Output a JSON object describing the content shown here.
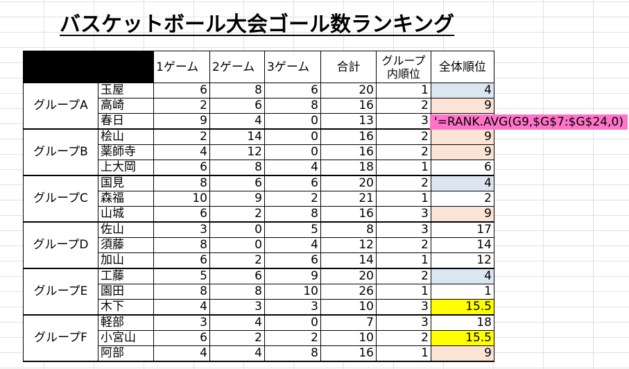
{
  "title": "バスケットボール大会ゴール数ランキング",
  "headers": {
    "game1": "1ゲーム",
    "game2": "2ゲーム",
    "game3": "3ゲーム",
    "total": "合計",
    "group_rank_line1": "グループ",
    "group_rank_line2": "内順位",
    "overall_rank": "全体順位"
  },
  "groups": [
    {
      "label": "グループA",
      "players": [
        {
          "name": "玉屋",
          "g1": "6",
          "g2": "8",
          "g3": "6",
          "total": "20",
          "grank": "1",
          "rank": "4",
          "hl": "blue"
        },
        {
          "name": "高崎",
          "g1": "2",
          "g2": "6",
          "g3": "8",
          "total": "16",
          "grank": "2",
          "rank": "9",
          "hl": "peach"
        },
        {
          "name": "春日",
          "g1": "9",
          "g2": "4",
          "g3": "0",
          "total": "13",
          "grank": "3",
          "rank": "",
          "hl": ""
        }
      ]
    },
    {
      "label": "グループB",
      "players": [
        {
          "name": "桧山",
          "g1": "2",
          "g2": "14",
          "g3": "0",
          "total": "16",
          "grank": "2",
          "rank": "9",
          "hl": "peach"
        },
        {
          "name": "薬師寺",
          "g1": "4",
          "g2": "12",
          "g3": "0",
          "total": "16",
          "grank": "2",
          "rank": "9",
          "hl": "peach"
        },
        {
          "name": "上大岡",
          "g1": "6",
          "g2": "8",
          "g3": "4",
          "total": "18",
          "grank": "1",
          "rank": "6",
          "hl": ""
        }
      ]
    },
    {
      "label": "グループC",
      "players": [
        {
          "name": "国見",
          "g1": "8",
          "g2": "6",
          "g3": "6",
          "total": "20",
          "grank": "2",
          "rank": "4",
          "hl": "blue"
        },
        {
          "name": "森福",
          "g1": "10",
          "g2": "9",
          "g3": "2",
          "total": "21",
          "grank": "1",
          "rank": "2",
          "hl": ""
        },
        {
          "name": "山城",
          "g1": "6",
          "g2": "2",
          "g3": "8",
          "total": "16",
          "grank": "3",
          "rank": "9",
          "hl": "peach"
        }
      ]
    },
    {
      "label": "グループD",
      "players": [
        {
          "name": "佐山",
          "g1": "3",
          "g2": "0",
          "g3": "5",
          "total": "8",
          "grank": "3",
          "rank": "17",
          "hl": ""
        },
        {
          "name": "須藤",
          "g1": "8",
          "g2": "0",
          "g3": "4",
          "total": "12",
          "grank": "2",
          "rank": "14",
          "hl": ""
        },
        {
          "name": "加山",
          "g1": "6",
          "g2": "2",
          "g3": "6",
          "total": "14",
          "grank": "1",
          "rank": "12",
          "hl": ""
        }
      ]
    },
    {
      "label": "グループE",
      "players": [
        {
          "name": "工藤",
          "g1": "5",
          "g2": "6",
          "g3": "9",
          "total": "20",
          "grank": "2",
          "rank": "4",
          "hl": "blue"
        },
        {
          "name": "園田",
          "g1": "8",
          "g2": "8",
          "g3": "10",
          "total": "26",
          "grank": "1",
          "rank": "1",
          "hl": ""
        },
        {
          "name": "木下",
          "g1": "4",
          "g2": "3",
          "g3": "3",
          "total": "10",
          "grank": "3",
          "rank": "15.5",
          "hl": "yellow"
        }
      ]
    },
    {
      "label": "グループF",
      "players": [
        {
          "name": "軽部",
          "g1": "3",
          "g2": "4",
          "g3": "0",
          "total": "7",
          "grank": "3",
          "rank": "18",
          "hl": ""
        },
        {
          "name": "小宮山",
          "g1": "6",
          "g2": "2",
          "g3": "2",
          "total": "10",
          "grank": "2",
          "rank": "15.5",
          "hl": "yellow"
        },
        {
          "name": "阿部",
          "g1": "4",
          "g2": "4",
          "g3": "8",
          "total": "16",
          "grank": "1",
          "rank": "9",
          "hl": "peach"
        }
      ]
    }
  ],
  "formula_note": "'=RANK.AVG(G9,$G$7:$G$24,0)"
}
